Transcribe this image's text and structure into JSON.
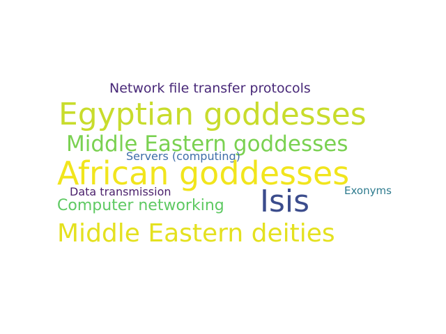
{
  "words": [
    {
      "text": "Network file transfer protocols",
      "color": "#482878"
    },
    {
      "text": "Egyptian goddesses",
      "color": "#c8dc2c"
    },
    {
      "text": "Middle Eastern goddesses",
      "color": "#7ad151"
    },
    {
      "text": "Servers (computing)",
      "color": "#3e6da8"
    },
    {
      "text": "African goddesses",
      "color": "#f1e51d"
    },
    {
      "text": "Data transmission",
      "color": "#4a1f6b"
    },
    {
      "text": "Exonyms",
      "color": "#2e7b8e"
    },
    {
      "text": "Computer networking",
      "color": "#5ec962"
    },
    {
      "text": "Isis",
      "color": "#3b4c8c"
    },
    {
      "text": "Middle Eastern deities",
      "color": "#e4e11f"
    }
  ]
}
